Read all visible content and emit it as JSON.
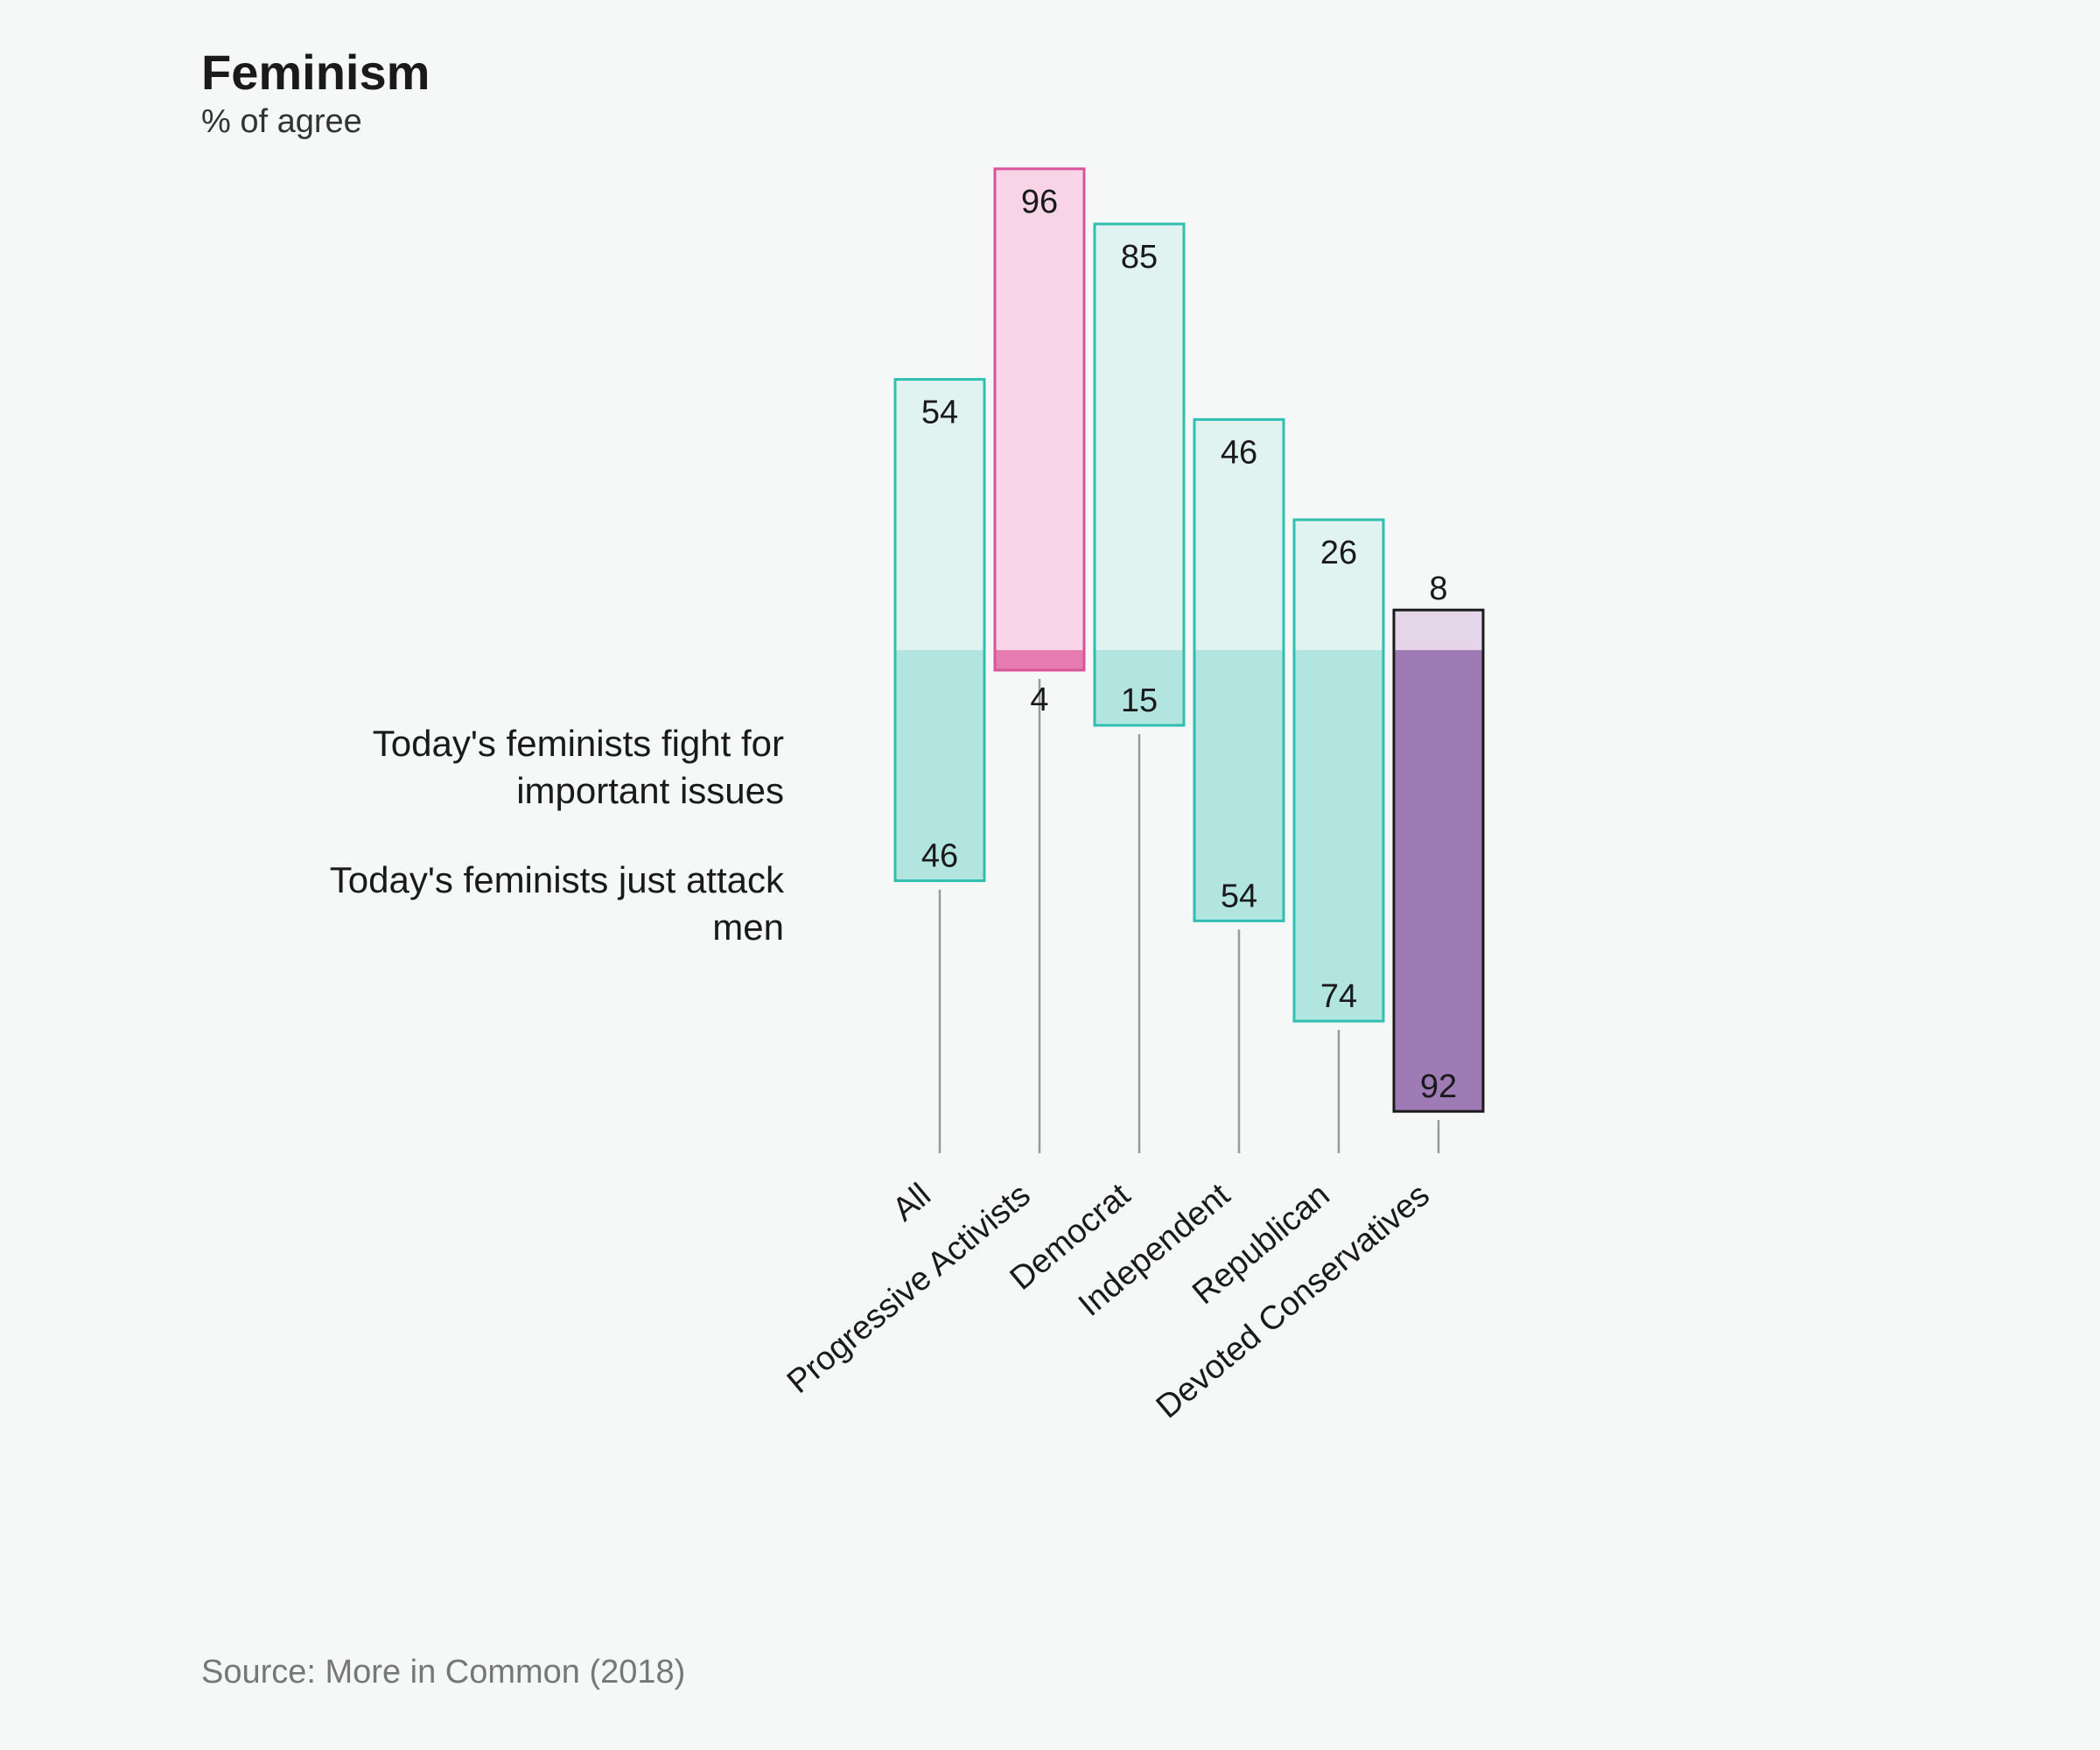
{
  "chart_data": {
    "type": "bar",
    "title": "Feminism",
    "subtitle": "% of agree",
    "source": "Source: More in Common (2018)",
    "categories": [
      "All",
      "Progressive Activists",
      "Democrat",
      "Independent",
      "Republican",
      "Devoted Conservatives"
    ],
    "series": [
      {
        "name": "Today's feminists fight for important issues",
        "values": [
          54,
          96,
          85,
          46,
          26,
          8
        ]
      },
      {
        "name": "Today's feminists just attack men",
        "values": [
          46,
          4,
          15,
          54,
          74,
          92
        ]
      }
    ],
    "row_labels": {
      "top": [
        "Today's feminists fight for",
        "important issues"
      ],
      "bottom": [
        "Today's feminists just attack",
        "men"
      ]
    },
    "ylim": [
      0,
      100
    ],
    "colors": {
      "default_border": "#2ebfb0",
      "default_top": "#e1f3f1",
      "default_bottom": "#b2e5e0",
      "highlight_first": {
        "border": "#d9559b",
        "top": "#f8d5e6",
        "bottom": "#e77cb3"
      },
      "highlight_last": {
        "border": "#1a1a1a",
        "top": "#e4d5e9",
        "bottom": "#9f7bb5"
      },
      "stem": "#999999"
    }
  }
}
